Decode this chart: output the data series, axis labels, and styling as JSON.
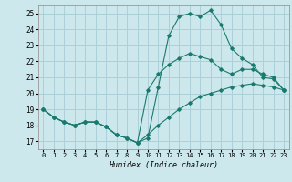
{
  "xlabel": "Humidex (Indice chaleur)",
  "background_color": "#cce8ec",
  "grid_color": "#aad0d8",
  "line_color": "#1a7a6e",
  "xlim": [
    -0.5,
    23.5
  ],
  "ylim": [
    16.5,
    25.5
  ],
  "xticks": [
    0,
    1,
    2,
    3,
    4,
    5,
    6,
    7,
    8,
    9,
    10,
    11,
    12,
    13,
    14,
    15,
    16,
    17,
    18,
    19,
    20,
    21,
    22,
    23
  ],
  "yticks": [
    17,
    18,
    19,
    20,
    21,
    22,
    23,
    24,
    25
  ],
  "line1_x": [
    0,
    1,
    2,
    3,
    4,
    5,
    6,
    7,
    8,
    9,
    10,
    11,
    12,
    13,
    14,
    15,
    16,
    17,
    18,
    19,
    20,
    21,
    22,
    23
  ],
  "line1_y": [
    19.0,
    18.5,
    18.2,
    18.0,
    18.2,
    18.2,
    17.9,
    17.4,
    17.2,
    16.9,
    17.2,
    20.4,
    23.6,
    24.8,
    25.0,
    24.8,
    25.2,
    24.3,
    22.8,
    22.2,
    21.8,
    21.0,
    20.9,
    20.2
  ],
  "line2_x": [
    0,
    1,
    2,
    3,
    4,
    5,
    6,
    7,
    8,
    9,
    10,
    11,
    12,
    13,
    14,
    15,
    16,
    17,
    18,
    19,
    20,
    21,
    22,
    23
  ],
  "line2_y": [
    19.0,
    18.5,
    18.2,
    18.0,
    18.2,
    18.2,
    17.9,
    17.4,
    17.2,
    16.9,
    20.2,
    21.2,
    21.8,
    22.2,
    22.5,
    22.3,
    22.1,
    21.5,
    21.2,
    21.5,
    21.5,
    21.2,
    21.0,
    20.2
  ],
  "line3_x": [
    0,
    1,
    2,
    3,
    4,
    5,
    6,
    7,
    8,
    9,
    10,
    11,
    12,
    13,
    14,
    15,
    16,
    17,
    18,
    19,
    20,
    21,
    22,
    23
  ],
  "line3_y": [
    19.0,
    18.5,
    18.2,
    18.0,
    18.2,
    18.2,
    17.9,
    17.4,
    17.2,
    16.9,
    17.4,
    18.0,
    18.5,
    19.0,
    19.4,
    19.8,
    20.0,
    20.2,
    20.4,
    20.5,
    20.6,
    20.5,
    20.4,
    20.2
  ]
}
